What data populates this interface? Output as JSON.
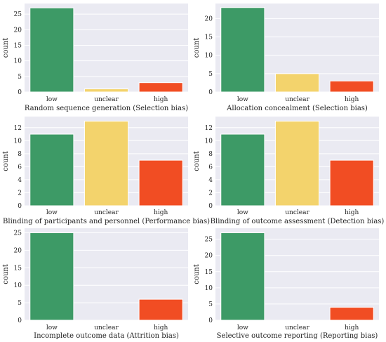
{
  "colors": {
    "plot_bg": "#eaeaf2",
    "grid": "#ffffff",
    "low": "#3d9a66",
    "unclear": "#f3d36c",
    "high": "#f14d23"
  },
  "chart_data": [
    {
      "type": "bar",
      "categories": [
        "low",
        "unclear",
        "high"
      ],
      "values": [
        27,
        1,
        3
      ],
      "xlabel": "Random sequence generation (Selection bias)",
      "ylabel": "count",
      "ylim": [
        0,
        28.4
      ],
      "yticks": [
        0,
        5,
        10,
        15,
        20,
        25
      ],
      "grid": true
    },
    {
      "type": "bar",
      "categories": [
        "low",
        "unclear",
        "high"
      ],
      "values": [
        23,
        5,
        3
      ],
      "xlabel": "Allocation concealment (Selection bias)",
      "ylabel": "count",
      "ylim": [
        0,
        24.1
      ],
      "yticks": [
        0,
        5,
        10,
        15,
        20
      ],
      "grid": true
    },
    {
      "type": "bar",
      "categories": [
        "low",
        "unclear",
        "high"
      ],
      "values": [
        11,
        13,
        7
      ],
      "xlabel": "Blinding of participants and personnel (Performance bias)",
      "ylabel": "count",
      "ylim": [
        0,
        13.7
      ],
      "yticks": [
        0,
        2,
        4,
        6,
        8,
        10,
        12
      ],
      "grid": true
    },
    {
      "type": "bar",
      "categories": [
        "low",
        "unclear",
        "high"
      ],
      "values": [
        11,
        13,
        7
      ],
      "xlabel": "Blinding of outcome assessment (Detection bias)",
      "ylabel": "count",
      "ylim": [
        0,
        13.7
      ],
      "yticks": [
        0,
        2,
        4,
        6,
        8,
        10,
        12
      ],
      "grid": true
    },
    {
      "type": "bar",
      "categories": [
        "low",
        "unclear",
        "high"
      ],
      "values": [
        25,
        0,
        6
      ],
      "xlabel": "Incomplete outcome data (Attrition bias)",
      "ylabel": "count",
      "ylim": [
        0,
        26.3
      ],
      "yticks": [
        0,
        5,
        10,
        15,
        20,
        25
      ],
      "grid": true
    },
    {
      "type": "bar",
      "categories": [
        "low",
        "unclear",
        "high"
      ],
      "values": [
        27,
        0,
        4
      ],
      "xlabel": "Selective outcome reporting (Reporting bias)",
      "ylabel": "count",
      "ylim": [
        0,
        28.4
      ],
      "yticks": [
        0,
        5,
        10,
        15,
        20,
        25
      ],
      "grid": true
    }
  ]
}
